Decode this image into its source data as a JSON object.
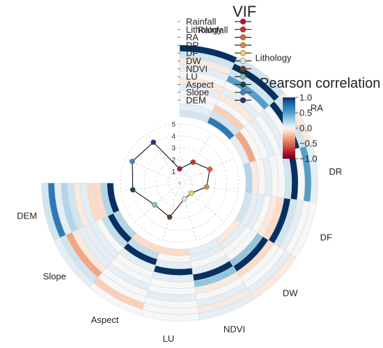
{
  "chart_data": {
    "type": "circular-heatmap-with-radar",
    "variables": [
      "Rainfall",
      "Lithology",
      "RA",
      "DR",
      "DF",
      "DW",
      "NDVI",
      "LU",
      "Aspect",
      "Slope",
      "DEM"
    ],
    "correlation_matrix": [
      [
        1.0,
        0.1,
        -0.05,
        0.05,
        0.0,
        -0.05,
        0.05,
        0.0,
        0.0,
        0.05,
        0.1
      ],
      [
        0.1,
        1.0,
        0.1,
        0.5,
        0.0,
        0.05,
        -0.05,
        0.0,
        -0.15,
        0.1,
        0.7
      ],
      [
        -0.05,
        0.1,
        1.0,
        0.0,
        0.05,
        0.0,
        0.05,
        0.0,
        0.0,
        -0.3,
        0.05
      ],
      [
        0.05,
        0.5,
        0.0,
        1.0,
        0.1,
        0.0,
        0.0,
        0.05,
        0.0,
        -0.05,
        0.2
      ],
      [
        0.0,
        0.0,
        0.05,
        0.1,
        1.0,
        -0.1,
        -0.05,
        0.0,
        0.05,
        0.05,
        0.1
      ],
      [
        -0.05,
        0.05,
        0.0,
        0.0,
        -0.1,
        1.0,
        0.3,
        0.0,
        0.0,
        0.05,
        -0.05
      ],
      [
        0.05,
        -0.05,
        0.05,
        0.0,
        -0.05,
        0.3,
        1.0,
        0.05,
        0.0,
        0.05,
        0.05
      ],
      [
        0.0,
        0.0,
        0.0,
        0.05,
        0.0,
        0.0,
        0.05,
        1.0,
        0.05,
        0.0,
        -0.1
      ],
      [
        0.0,
        -0.15,
        0.0,
        0.0,
        0.05,
        0.0,
        0.0,
        0.05,
        1.0,
        0.15,
        -0.1
      ],
      [
        0.05,
        0.1,
        -0.3,
        -0.05,
        0.05,
        0.05,
        0.05,
        0.0,
        0.15,
        1.0,
        0.2
      ],
      [
        0.1,
        0.7,
        0.05,
        0.2,
        0.1,
        -0.05,
        0.05,
        -0.1,
        -0.1,
        0.2,
        1.0
      ]
    ],
    "vif": [
      {
        "name": "Rainfall",
        "value": 1.2,
        "color": "#b2182b"
      },
      {
        "name": "Lithology",
        "value": 2.1,
        "color": "#c9302c"
      },
      {
        "name": "RA",
        "value": 2.8,
        "color": "#d6604d"
      },
      {
        "name": "DR",
        "value": 2.3,
        "color": "#e08a3c"
      },
      {
        "name": "DF",
        "value": 1.3,
        "color": "#f2c96a"
      },
      {
        "name": "DW",
        "value": 1.4,
        "color": "#e2e2e2"
      },
      {
        "name": "NDVI",
        "value": 3.0,
        "color": "#6b3e1e"
      },
      {
        "name": "LU",
        "value": 2.8,
        "color": "#7fc4b3"
      },
      {
        "name": "Aspect",
        "value": 4.0,
        "color": "#0f4a3a"
      },
      {
        "name": "Slope",
        "value": 4.4,
        "color": "#4a7fc0"
      },
      {
        "name": "DEM",
        "value": 4.1,
        "color": "#2d2f85"
      }
    ],
    "vif_axis": {
      "ticks": [
        "1",
        "2",
        "3",
        "4",
        "5"
      ],
      "max": 5
    },
    "vif_title": "VIF",
    "colorbar": {
      "title": "Pearson correlation",
      "ticks": [
        "1.0",
        "0.5",
        "0.0",
        "−0.5",
        "−1.0"
      ],
      "tick_values": [
        1.0,
        0.5,
        0.0,
        -0.5,
        -1.0
      ],
      "colors": [
        "#053061",
        "#2166ac",
        "#4393c3",
        "#92c5de",
        "#d1e5f0",
        "#f7f7f7",
        "#fddbc7",
        "#f4a582",
        "#d6604d",
        "#b2182b",
        "#67001f"
      ]
    }
  }
}
